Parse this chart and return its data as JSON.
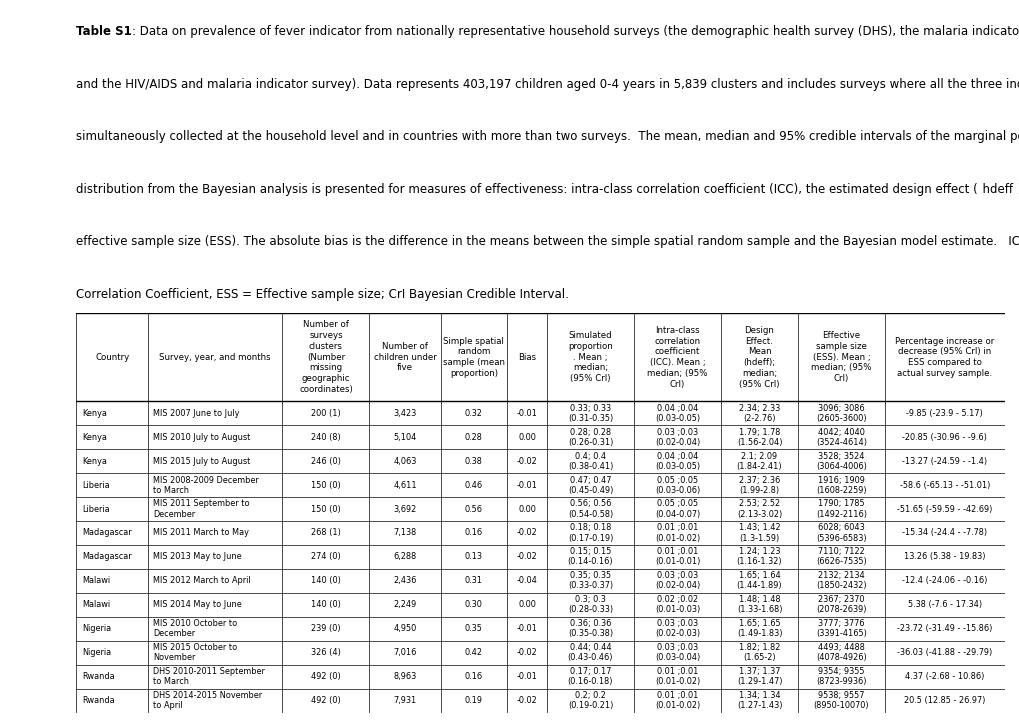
{
  "caption_bold": "Table S1",
  "caption_text": ": Data on prevalence of fever indicator from nationally representative household surveys (the demographic health survey (DHS), the malaria indicator survey (MIS) and the HIV/AIDS and malaria indicator survey). Data represents 403,197 children aged 0-4 years in 5,839 clusters and includes surveys where all the three indicators were simultaneously collected at the household level and in countries with more than two surveys.  The mean, median and 95% credible intervals of the marginal posterior distribution from the Bayesian analysis is presented for measures of effectiveness: intra-class correlation coefficient (ICC), the estimated design effect ( hdeff ) and the effective sample size (ESS). The absolute bias is the difference in the means between the simple spatial random sample and the Bayesian model estimate.   ICC = Intra-class Correlation Coefficient, ESS = Effective sample size; CrI Bayesian Credible Interval.",
  "col_headers": [
    "Country",
    "Survey, year, and months",
    "Number of\nsurveys\nclusters\n(Number\nmissing\ngeographic\ncoordinates)",
    "Number of\nchildren under\nfive",
    "Simple spatial\nrandom\nsample (mean\nproportion)",
    "Bias",
    "Simulated\nproportion\n. Mean ;\nmedian;\n(95% CrI)",
    "Intra-class\ncorrelation\ncoefficient\n(ICC). Mean ;\nmedian; (95%\nCrI)",
    "Design\nEffect.\nMean\n(hdeff);\nmedian;\n(95% CrI)",
    "Effective\nsample size\n(ESS). Mean ;\nmedian; (95%\nCrI)",
    "Percentage increase or\ndecrease (95% CrI) in\nESS compared to\nactual survey sample."
  ],
  "rows": [
    {
      "country": "Kenya",
      "survey": "MIS 2007 June to July",
      "clusters": "200 (1)",
      "children": "3,423",
      "simple": "0.32",
      "bias": "-0.01",
      "simulated": "0.33; 0.33\n(0.31-0.35)",
      "icc": "0.04 ;0.04\n(0.03-0.05)",
      "design": "2.34; 2.33\n(2-2.76)",
      "ess": "3096; 3086\n(2605-3600)",
      "pct": "-9.85 (-23.9 - 5.17)"
    },
    {
      "country": "Kenya",
      "survey": "MIS 2010 July to August",
      "clusters": "240 (8)",
      "children": "5,104",
      "simple": "0.28",
      "bias": "0.00",
      "simulated": "0.28; 0.28\n(0.26-0.31)",
      "icc": "0.03 ;0.03\n(0.02-0.04)",
      "design": "1.79; 1.78\n(1.56-2.04)",
      "ess": "4042; 4040\n(3524-4614)",
      "pct": "-20.85 (-30.96 - -9.6)"
    },
    {
      "country": "Kenya",
      "survey": "MIS 2015 July to August",
      "clusters": "246 (0)",
      "children": "4,063",
      "simple": "0.38",
      "bias": "-0.02",
      "simulated": "0.4; 0.4\n(0.38-0.41)",
      "icc": "0.04 ;0.04\n(0.03-0.05)",
      "design": "2.1; 2.09\n(1.84-2.41)",
      "ess": "3528; 3524\n(3064-4006)",
      "pct": "-13.27 (-24.59 - -1.4)"
    },
    {
      "country": "Liberia",
      "survey": "MIS 2008-2009 December\nto March",
      "clusters": "150 (0)",
      "children": "4,611",
      "simple": "0.46",
      "bias": "-0.01",
      "simulated": "0.47; 0.47\n(0.45-0.49)",
      "icc": "0.05 ;0.05\n(0.03-0.06)",
      "design": "2.37; 2.36\n(1.99-2.8)",
      "ess": "1916; 1909\n(1608-2259)",
      "pct": "-58.6 (-65.13 - -51.01)"
    },
    {
      "country": "Liberia",
      "survey": "MIS 2011 September to\nDecember",
      "clusters": "150 (0)",
      "children": "3,692",
      "simple": "0.56",
      "bias": "0.00",
      "simulated": "0.56; 0.56\n(0.54-0.58)",
      "icc": "0.05 ;0.05\n(0.04-0.07)",
      "design": "2.53; 2.52\n(2.13-3.02)",
      "ess": "1790; 1785\n(1492-2116)",
      "pct": "-51.65 (-59.59 - -42.69)"
    },
    {
      "country": "Madagascar",
      "survey": "MIS 2011 March to May",
      "clusters": "268 (1)",
      "children": "7,138",
      "simple": "0.16",
      "bias": "-0.02",
      "simulated": "0.18; 0.18\n(0.17-0.19)",
      "icc": "0.01 ;0.01\n(0.01-0.02)",
      "design": "1.43; 1.42\n(1.3-1.59)",
      "ess": "6028; 6043\n(5396-6583)",
      "pct": "-15.34 (-24.4 - -7.78)"
    },
    {
      "country": "Madagascar",
      "survey": "MIS 2013 May to June",
      "clusters": "274 (0)",
      "children": "6,288",
      "simple": "0.13",
      "bias": "-0.02",
      "simulated": "0.15; 0.15\n(0.14-0.16)",
      "icc": "0.01 ;0.01\n(0.01-0.01)",
      "design": "1.24; 1.23\n(1.16-1.32)",
      "ess": "7110; 7122\n(6626-7535)",
      "pct": "13.26 (5.38 - 19.83)"
    },
    {
      "country": "Malawi",
      "survey": "MIS 2012 March to April",
      "clusters": "140 (0)",
      "children": "2,436",
      "simple": "0.31",
      "bias": "-0.04",
      "simulated": "0.35; 0.35\n(0.33-0.37)",
      "icc": "0.03 ;0.03\n(0.02-0.04)",
      "design": "1.65; 1.64\n(1.44-1.89)",
      "ess": "2132; 2134\n(1850-2432)",
      "pct": "-12.4 (-24.06 - -0.16)"
    },
    {
      "country": "Malawi",
      "survey": "MIS 2014 May to June",
      "clusters": "140 (0)",
      "children": "2,249",
      "simple": "0.30",
      "bias": "0.00",
      "simulated": "0.3; 0.3\n(0.28-0.33)",
      "icc": "0.02 ;0.02\n(0.01-0.03)",
      "design": "1.48; 1.48\n(1.33-1.68)",
      "ess": "2367; 2370\n(2078-2639)",
      "pct": "5.38 (-7.6 - 17.34)"
    },
    {
      "country": "Nigeria",
      "survey": "MIS 2010 October to\nDecember",
      "clusters": "239 (0)",
      "children": "4,950",
      "simple": "0.35",
      "bias": "-0.01",
      "simulated": "0.36; 0.36\n(0.35-0.38)",
      "icc": "0.03 ;0.03\n(0.02-0.03)",
      "design": "1.65; 1.65\n(1.49-1.83)",
      "ess": "3777; 3776\n(3391-4165)",
      "pct": "-23.72 (-31.49 - -15.86)"
    },
    {
      "country": "Nigeria",
      "survey": "MIS 2015 October to\nNovember",
      "clusters": "326 (4)",
      "children": "7,016",
      "simple": "0.42",
      "bias": "-0.02",
      "simulated": "0.44; 0.44\n(0.43-0.46)",
      "icc": "0.03 ;0.03\n(0.03-0.04)",
      "design": "1.82; 1.82\n(1.65-2)",
      "ess": "4493; 4488\n(4078-4926)",
      "pct": "-36.03 (-41.88 - -29.79)"
    },
    {
      "country": "Rwanda",
      "survey": "DHS 2010-2011 September\nto March",
      "clusters": "492 (0)",
      "children": "8,963",
      "simple": "0.16",
      "bias": "-0.01",
      "simulated": "0.17; 0.17\n(0.16-0.18)",
      "icc": "0.01 ;0.01\n(0.01-0.02)",
      "design": "1.37; 1.37\n(1.29-1.47)",
      "ess": "9354; 9355\n(8723-9936)",
      "pct": "4.37 (-2.68 - 10.86)"
    },
    {
      "country": "Rwanda",
      "survey": "DHS 2014-2015 November\nto April",
      "clusters": "492 (0)",
      "children": "7,931",
      "simple": "0.19",
      "bias": "-0.02",
      "simulated": "0.2; 0.2\n(0.19-0.21)",
      "icc": "0.01 ;0.01\n(0.01-0.02)",
      "design": "1.34; 1.34\n(1.27-1.43)",
      "ess": "9538; 9557\n(8950-10070)",
      "pct": "20.5 (12.85 - 26.97)"
    }
  ],
  "caption_lines": [
    [
      "bold",
      "Table S1",
      "normal",
      ": Data on prevalence of fever indicator from nationally representative household surveys (the demographic health survey (DHS), the malaria indicator survey (MIS)"
    ],
    [
      "normal",
      "and the HIV/AIDS and malaria indicator survey). Data represents 403,197 children aged 0-4 years in 5,839 clusters and includes surveys where all the three indicators were"
    ],
    [
      "normal",
      "simultaneously collected at the household level and in countries with more than two surveys.  The mean, median and 95% credible intervals of the marginal posterior"
    ],
    [
      "normal",
      "distribution from the Bayesian analysis is presented for measures of effectiveness: intra-class correlation coefficient (ICC), the estimated design effect ("
    ],
    [
      "normal",
      "effective sample size (ESS). The absolute bias is the difference in the means between the simple spatial random sample and the Bayesian model estimate.   ICC = Intra-class"
    ],
    [
      "normal",
      "Correlation Coefficient, ESS = Effective sample size; CrI Bayesian Credible Interval."
    ]
  ],
  "background_color": "#ffffff",
  "text_color": "#000000"
}
